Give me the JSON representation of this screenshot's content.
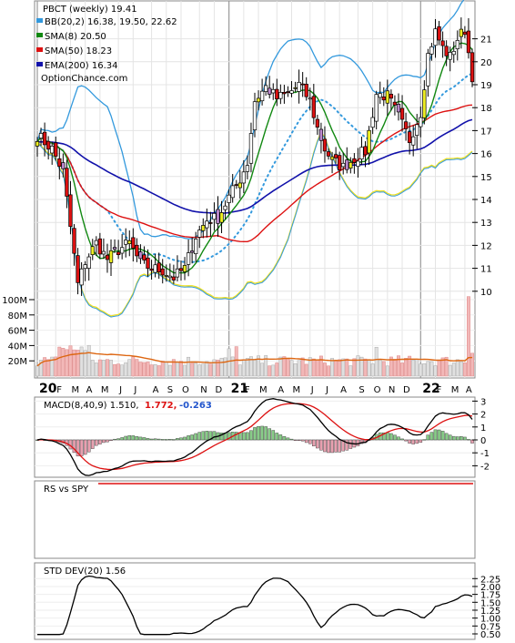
{
  "chart_data": [
    {
      "type": "candlestick",
      "title": "PBCT (weekly) 19.41",
      "watermark": "OptionChance.com",
      "legend": [
        {
          "label": "BB(20,2) 16.38, 19.50, 22.62",
          "color": "#3399dd"
        },
        {
          "label": "SMA(8) 20.50",
          "color": "#118811"
        },
        {
          "label": "SMA(50) 18.23",
          "color": "#dd1111"
        },
        {
          "label": "EMA(200) 16.34",
          "color": "#1111aa"
        }
      ],
      "legend_placement": "top-left",
      "y_ticks": [
        "10",
        "11",
        "12",
        "13",
        "14",
        "15",
        "16",
        "17",
        "18",
        "19",
        "20",
        "21"
      ],
      "ylim": [
        9,
        22
      ],
      "x_ticks": [
        "20",
        "F",
        "M",
        "A",
        "M",
        "J",
        "J",
        "A",
        "S",
        "O",
        "N",
        "D",
        "21",
        "F",
        "M",
        "A",
        "M",
        "J",
        "J",
        "A",
        "S",
        "O",
        "N",
        "D",
        "22",
        "F",
        "M",
        "A"
      ],
      "x_year_labels": [
        "20",
        "21",
        "22"
      ],
      "close_anchors": [
        {
          "week": 0,
          "close": 16.8
        },
        {
          "week": 4,
          "close": 16.2
        },
        {
          "week": 7,
          "close": 15.2
        },
        {
          "week": 9,
          "close": 12.8
        },
        {
          "week": 11,
          "close": 10.3
        },
        {
          "week": 13,
          "close": 11.3
        },
        {
          "week": 16,
          "close": 12.1
        },
        {
          "week": 19,
          "close": 11.4
        },
        {
          "week": 22,
          "close": 11.8
        },
        {
          "week": 25,
          "close": 12.1
        },
        {
          "week": 28,
          "close": 11.2
        },
        {
          "week": 31,
          "close": 11.0
        },
        {
          "week": 34,
          "close": 10.9
        },
        {
          "week": 37,
          "close": 10.6
        },
        {
          "week": 40,
          "close": 11.0
        },
        {
          "week": 43,
          "close": 12.4
        },
        {
          "week": 46,
          "close": 13.1
        },
        {
          "week": 49,
          "close": 13.2
        },
        {
          "week": 52,
          "close": 14.1
        },
        {
          "week": 55,
          "close": 14.9
        },
        {
          "week": 57,
          "close": 15.6
        },
        {
          "week": 59,
          "close": 18.3
        },
        {
          "week": 62,
          "close": 18.9
        },
        {
          "week": 65,
          "close": 18.4
        },
        {
          "week": 68,
          "close": 18.6
        },
        {
          "week": 71,
          "close": 19.0
        },
        {
          "week": 74,
          "close": 18.3
        },
        {
          "week": 76,
          "close": 17.1
        },
        {
          "week": 78,
          "close": 16.2
        },
        {
          "week": 80,
          "close": 15.7
        },
        {
          "week": 83,
          "close": 15.4
        },
        {
          "week": 86,
          "close": 15.8
        },
        {
          "week": 89,
          "close": 16.1
        },
        {
          "week": 92,
          "close": 18.6
        },
        {
          "week": 95,
          "close": 18.5
        },
        {
          "week": 98,
          "close": 17.6
        },
        {
          "week": 101,
          "close": 16.6
        },
        {
          "week": 104,
          "close": 17.8
        },
        {
          "week": 106,
          "close": 20.3
        },
        {
          "week": 108,
          "close": 21.3
        },
        {
          "week": 110,
          "close": 20.6
        },
        {
          "week": 112,
          "close": 20.2
        },
        {
          "week": 114,
          "close": 21.0
        },
        {
          "week": 116,
          "close": 21.4
        },
        {
          "week": 118,
          "close": 19.4
        }
      ],
      "volume_ticks": [
        "20M",
        "40M",
        "60M",
        "80M",
        "100M"
      ],
      "volume_max": 110
    },
    {
      "type": "line",
      "label": "MACD(8,40,9) 1.510,",
      "signal_value": "1.772,",
      "hist_value": "-0.263",
      "y_ticks": [
        "-2",
        "-1",
        "0",
        "1",
        "2",
        "3"
      ],
      "ylim": [
        -3,
        3.3
      ]
    },
    {
      "type": "line",
      "label": "RS vs SPY"
    },
    {
      "type": "line",
      "label": "STD DEV(20) 1.56",
      "y_ticks": [
        "0.50",
        "0.75",
        "1.00",
        "1.25",
        "1.50",
        "1.75",
        "2.00",
        "2.25"
      ],
      "ylim": [
        0.45,
        2.3
      ]
    }
  ]
}
